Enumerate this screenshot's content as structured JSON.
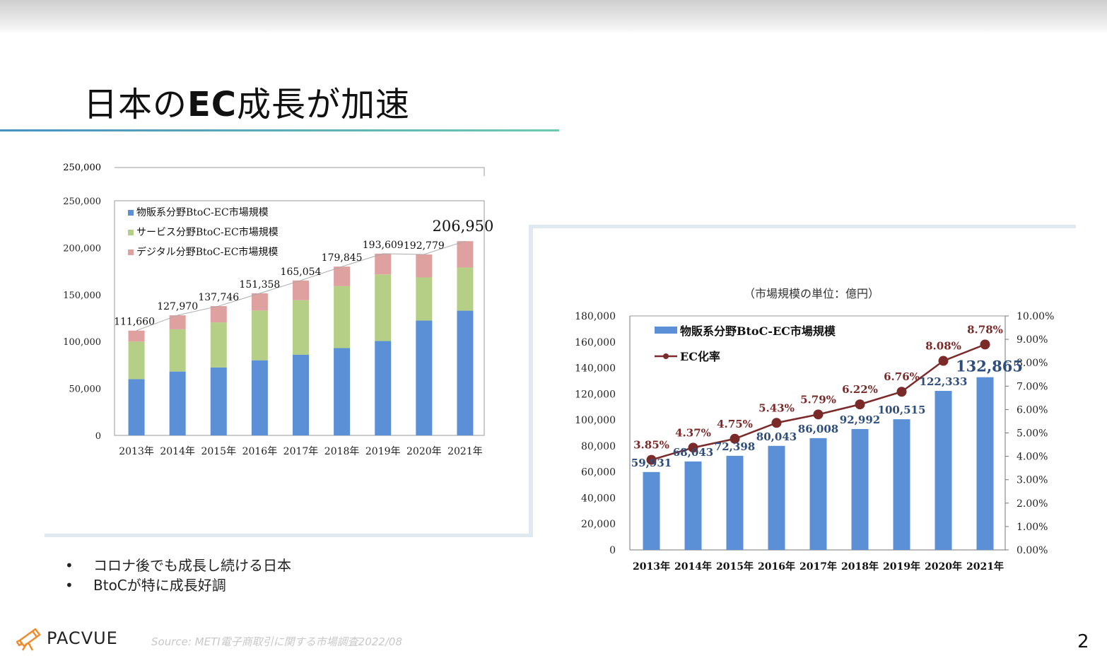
{
  "slide": {
    "title_prefix": "日本の",
    "title_bold": "EC",
    "title_suffix": "成長が加速",
    "bullets": [
      "コロナ後でも成長し続ける日本",
      "BtoCが特に成長好調"
    ],
    "logo_text": "PACVUE",
    "source": "Source: METI電子商取引に関する市場調査2022/08",
    "page_number": "2"
  },
  "chart_data": [
    {
      "type": "bar",
      "stacked": true,
      "categories": [
        "2013年",
        "2014年",
        "2015年",
        "2016年",
        "2017年",
        "2018年",
        "2019年",
        "2020年",
        "2021年"
      ],
      "series": [
        {
          "name": "物販系分野BtoC-EC市場規模",
          "color": "#5b8fd6",
          "values": [
            59931,
            68043,
            72398,
            80043,
            86008,
            92992,
            100515,
            122333,
            132865
          ]
        },
        {
          "name": "サービス分野BtoC-EC市場規模",
          "color": "#b5cf87",
          "values": [
            40000,
            45000,
            48000,
            53000,
            58000,
            66000,
            71000,
            46000,
            46000
          ]
        },
        {
          "name": "デジタル分野BtoC-EC市場規模",
          "color": "#dfa0a0",
          "values": [
            11729,
            14927,
            17348,
            18315,
            21046,
            20853,
            22094,
            24446,
            28085
          ]
        }
      ],
      "totals": [
        "111,660",
        "127,970",
        "137,746",
        "151,358",
        "165,054",
        "179,845",
        "193,609",
        "192,779",
        "206,950"
      ],
      "yticks": [
        "250,000",
        "200,000",
        "150,000",
        "100,000",
        "50,000",
        "0"
      ],
      "ylim": [
        0,
        250000
      ],
      "legend_position": "top-left",
      "grid": false
    },
    {
      "type": "bar+line",
      "subtitle": "（市場規模の単位：億円）",
      "categories": [
        "2013年",
        "2014年",
        "2015年",
        "2016年",
        "2017年",
        "2018年",
        "2019年",
        "2020年",
        "2021年"
      ],
      "bar_series": {
        "name": "物販系分野BtoC-EC市場規模",
        "color": "#5b8fd6",
        "values": [
          59931,
          68043,
          72398,
          80043,
          86008,
          92992,
          100515,
          122333,
          132865
        ],
        "labels": [
          "59,931",
          "68,043",
          "72,398",
          "80,043",
          "86,008",
          "92,992",
          "100,515",
          "122,333",
          "132,865"
        ]
      },
      "line_series": {
        "name": "EC化率",
        "color": "#7b2a2a",
        "values": [
          3.85,
          4.37,
          4.75,
          5.43,
          5.79,
          6.22,
          6.76,
          8.08,
          8.78
        ],
        "labels": [
          "3.85%",
          "4.37%",
          "4.75%",
          "5.43%",
          "5.79%",
          "6.22%",
          "6.76%",
          "8.08%",
          "8.78%"
        ]
      },
      "yticks_left": [
        "180,000",
        "160,000",
        "140,000",
        "120,000",
        "100,000",
        "80,000",
        "60,000",
        "40,000",
        "20,000",
        "0"
      ],
      "yticks_right": [
        "10.00%",
        "9.00%",
        "8.00%",
        "7.00%",
        "6.00%",
        "5.00%",
        "4.00%",
        "3.00%",
        "2.00%",
        "1.00%",
        "0.00%"
      ],
      "ylim_left": [
        0,
        180000
      ],
      "ylim_right": [
        0,
        10
      ],
      "legend_position": "top-left",
      "grid": false
    }
  ]
}
